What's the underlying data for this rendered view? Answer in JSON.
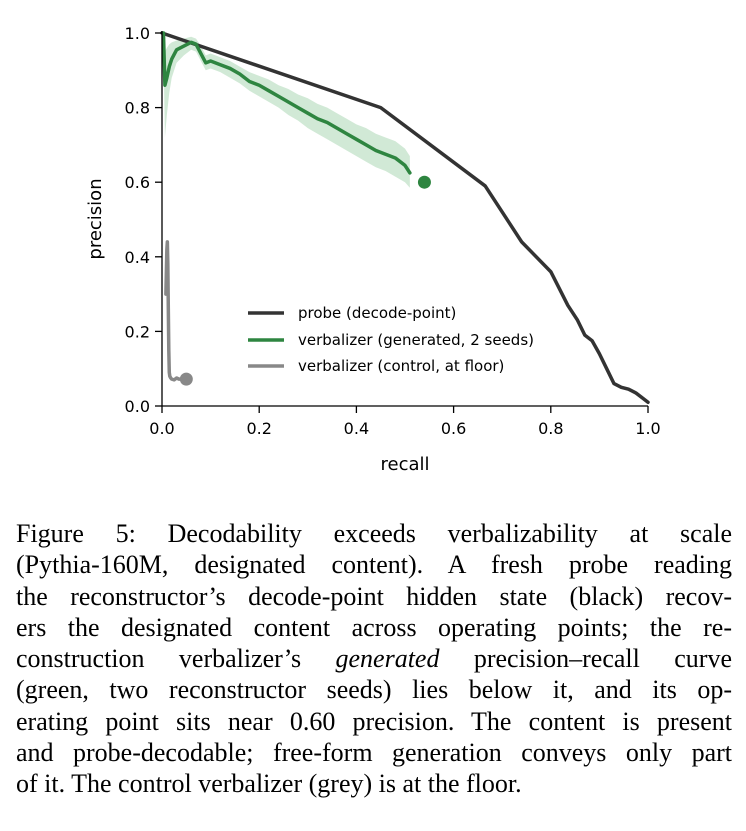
{
  "chart_data": {
    "type": "line",
    "xlabel": "recall",
    "ylabel": "precision",
    "xlim": [
      0.0,
      1.0
    ],
    "ylim": [
      0.0,
      1.0
    ],
    "xticks": [
      "0.0",
      "0.2",
      "0.4",
      "0.6",
      "0.8",
      "1.0"
    ],
    "yticks": [
      "0.0",
      "0.2",
      "0.4",
      "0.6",
      "0.8",
      "1.0"
    ],
    "grid": false,
    "legend_position": "center",
    "series": [
      {
        "name": "probe (decode-point)",
        "color": "#333333",
        "x": [
          0.0,
          0.45,
          0.665,
          0.74,
          0.8,
          0.835,
          0.855,
          0.87,
          0.885,
          0.9,
          0.915,
          0.93,
          0.945,
          0.96,
          0.975,
          0.99,
          1.0
        ],
        "y": [
          1.0,
          0.8,
          0.59,
          0.44,
          0.36,
          0.27,
          0.23,
          0.19,
          0.175,
          0.14,
          0.1,
          0.06,
          0.05,
          0.045,
          0.035,
          0.02,
          0.01
        ]
      },
      {
        "name": "verbalizer (generated, 2 seeds)",
        "color": "#2e8540",
        "band_color": "#c9e5cf",
        "x": [
          0.003,
          0.006,
          0.01,
          0.015,
          0.02,
          0.03,
          0.045,
          0.06,
          0.07,
          0.08,
          0.09,
          0.1,
          0.12,
          0.14,
          0.16,
          0.18,
          0.2,
          0.22,
          0.24,
          0.26,
          0.28,
          0.3,
          0.32,
          0.34,
          0.36,
          0.38,
          0.4,
          0.42,
          0.44,
          0.46,
          0.48,
          0.5,
          0.51
        ],
        "y": [
          1.0,
          0.86,
          0.88,
          0.91,
          0.93,
          0.955,
          0.965,
          0.975,
          0.97,
          0.945,
          0.92,
          0.925,
          0.915,
          0.905,
          0.89,
          0.87,
          0.86,
          0.845,
          0.83,
          0.815,
          0.8,
          0.785,
          0.77,
          0.76,
          0.745,
          0.73,
          0.715,
          0.7,
          0.685,
          0.675,
          0.665,
          0.645,
          0.625
        ],
        "band_upper": [
          1.0,
          0.95,
          0.96,
          0.97,
          0.975,
          0.98,
          0.985,
          0.99,
          0.985,
          0.965,
          0.94,
          0.945,
          0.935,
          0.925,
          0.91,
          0.895,
          0.885,
          0.875,
          0.86,
          0.85,
          0.835,
          0.825,
          0.81,
          0.8,
          0.785,
          0.77,
          0.755,
          0.745,
          0.73,
          0.72,
          0.71,
          0.69,
          0.67
        ],
        "band_lower": [
          0.95,
          0.72,
          0.78,
          0.84,
          0.88,
          0.92,
          0.94,
          0.955,
          0.95,
          0.925,
          0.9,
          0.905,
          0.895,
          0.88,
          0.865,
          0.845,
          0.83,
          0.815,
          0.8,
          0.78,
          0.765,
          0.745,
          0.73,
          0.715,
          0.7,
          0.685,
          0.67,
          0.655,
          0.64,
          0.63,
          0.615,
          0.6,
          0.585
        ],
        "operating_point": {
          "x": 0.54,
          "y": 0.6
        }
      },
      {
        "name": "verbalizer (control, at floor)",
        "color": "#888888",
        "x": [
          0.008,
          0.009,
          0.01,
          0.011,
          0.012,
          0.013,
          0.014,
          0.015,
          0.016,
          0.018,
          0.02,
          0.025,
          0.03,
          0.035,
          0.04
        ],
        "y": [
          0.3,
          0.36,
          0.42,
          0.44,
          0.38,
          0.26,
          0.15,
          0.09,
          0.08,
          0.075,
          0.072,
          0.07,
          0.075,
          0.072,
          0.072
        ],
        "operating_point": {
          "x": 0.05,
          "y": 0.072
        }
      }
    ]
  },
  "caption": {
    "line1": "Figure 5: Decodability exceeds verbalizability at scale",
    "line2": "(Pythia-160M, designated content). A fresh probe reading",
    "line3": "the reconstructor’s decode-point hidden state (black) recov-",
    "line4": "ers the designated content across operating points; the re-",
    "line5_before": "construction verbalizer’s ",
    "line5_em": "generated",
    "line5_after": " precision–recall curve",
    "line6": "(green, two reconstructor seeds) lies below it, and its op-",
    "line7": "erating point sits near 0.60 precision. The content is present",
    "line8": "and probe-decodable; free-form generation conveys only part",
    "line9": "of it. The control verbalizer (grey) is at the floor."
  }
}
